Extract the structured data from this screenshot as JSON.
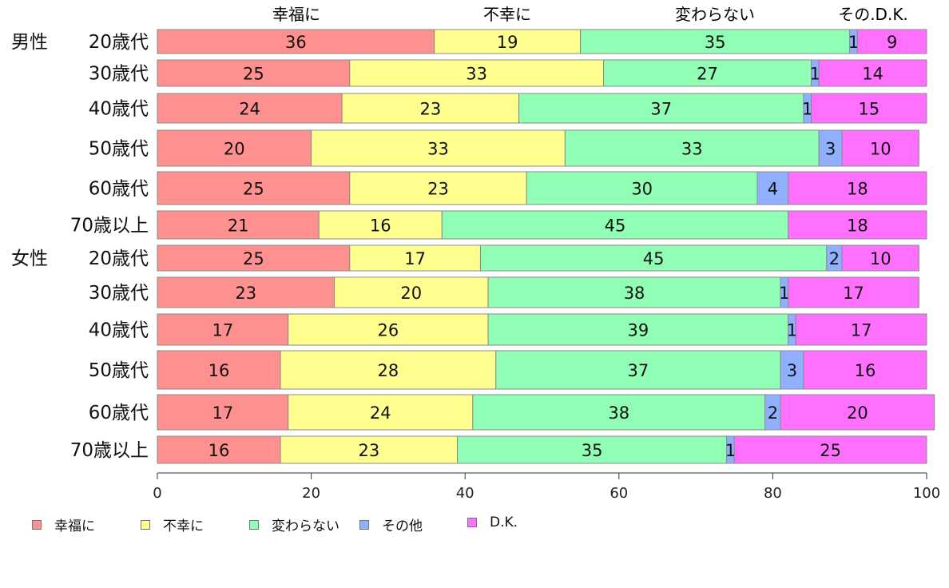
{
  "chart_data": {
    "type": "bar",
    "orientation": "horizontal",
    "stacked": true,
    "title": "",
    "xlabel": "",
    "ylabel": "",
    "xlim": [
      0,
      100
    ],
    "x_ticks": [
      "0",
      "20",
      "40",
      "60",
      "80",
      "100"
    ],
    "grid": false,
    "legend_position": "bottom",
    "column_headers": [
      "幸福に",
      "不幸に",
      "変わらない",
      "その.D.K."
    ],
    "groups": [
      {
        "label": "男性",
        "rows": [
          "20歳代",
          "30歳代",
          "40歳代",
          "50歳代",
          "60歳代",
          "70歳以上"
        ]
      },
      {
        "label": "女性",
        "rows": [
          "20歳代",
          "30歳代",
          "40歳代",
          "50歳代",
          "60歳代",
          "70歳以上"
        ]
      }
    ],
    "categories": [
      "20歳代",
      "30歳代",
      "40歳代",
      "50歳代",
      "60歳代",
      "70歳以上",
      "20歳代",
      "30歳代",
      "40歳代",
      "50歳代",
      "60歳代",
      "70歳以上"
    ],
    "series": [
      {
        "name": "幸福に",
        "color": "#FF9090",
        "values": [
          36,
          25,
          24,
          20,
          25,
          21,
          25,
          23,
          17,
          16,
          17,
          16
        ]
      },
      {
        "name": "不幸に",
        "color": "#FFFF90",
        "values": [
          19,
          33,
          23,
          33,
          23,
          16,
          17,
          20,
          26,
          28,
          24,
          23
        ]
      },
      {
        "name": "変わらない",
        "color": "#90FFB5",
        "values": [
          35,
          27,
          37,
          33,
          30,
          45,
          45,
          38,
          39,
          37,
          38,
          35
        ]
      },
      {
        "name": "その他",
        "color": "#90B0FF",
        "values": [
          1,
          1,
          1,
          3,
          4,
          0,
          2,
          1,
          1,
          3,
          2,
          1
        ]
      },
      {
        "name": "D.K.",
        "color": "#FF70FF",
        "values": [
          9,
          14,
          15,
          10,
          18,
          18,
          10,
          17,
          17,
          16,
          20,
          25
        ]
      }
    ]
  }
}
